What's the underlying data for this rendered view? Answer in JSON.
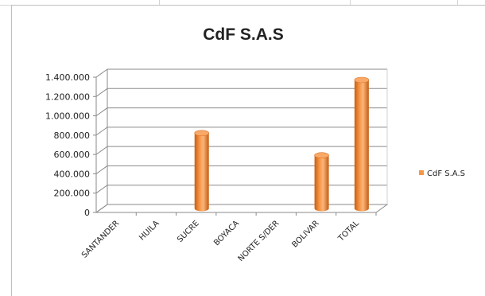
{
  "chart_data": {
    "type": "bar",
    "title": "CdF S.A.S",
    "categories": [
      "SANTANDER",
      "HUILA",
      "SUCRE",
      "BOYACA",
      "NORTE S/DER",
      "BOLIVAR",
      "TOTAL"
    ],
    "series": [
      {
        "name": "CdF S.A.S",
        "values": [
          0,
          0,
          780000,
          0,
          0,
          550000,
          1330000
        ],
        "color": "#f79646"
      }
    ],
    "y_ticks": [
      "0",
      "200.000",
      "400.000",
      "600.000",
      "800.000",
      "1.000.000",
      "1.200.000",
      "1.400.000"
    ],
    "ylim": [
      0,
      1400000
    ],
    "grid": true,
    "legend_position": "right",
    "style": "3d-cylinder"
  }
}
